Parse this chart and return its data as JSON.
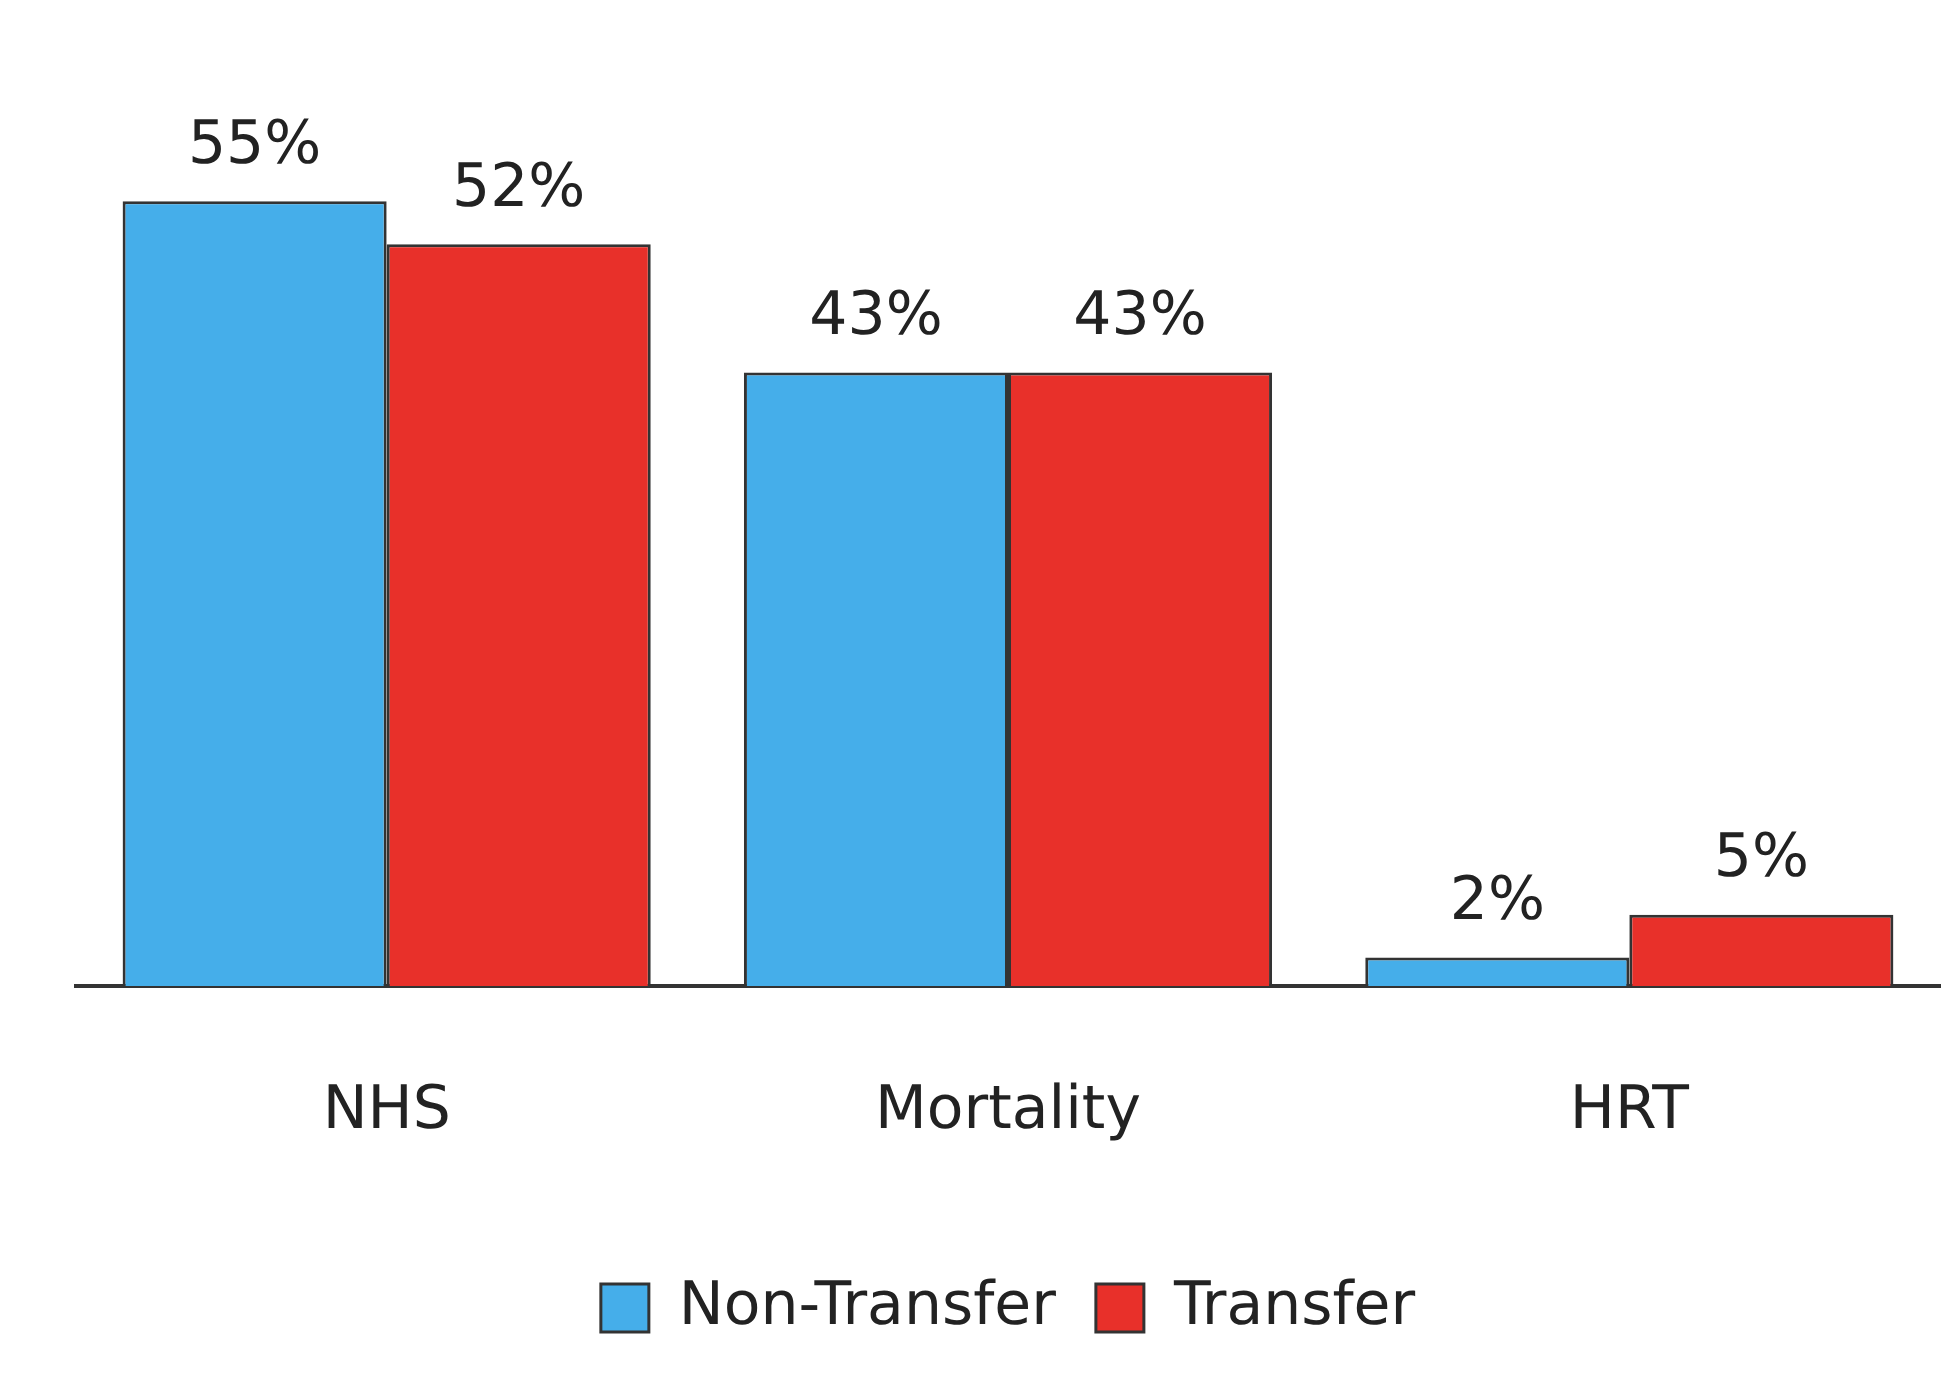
{
  "chart_data": {
    "type": "bar",
    "categories": [
      "NHS",
      "Mortality",
      "HRT"
    ],
    "series": [
      {
        "name": "Non-Transfer",
        "color": "#45aeea",
        "values": [
          55,
          43,
          2
        ],
        "value_labels": [
          "55%",
          "43%",
          "2%"
        ]
      },
      {
        "name": "Transfer",
        "color": "#e8302a",
        "values": [
          52,
          43,
          5
        ],
        "value_labels": [
          "52%",
          "43%",
          "5%"
        ]
      }
    ],
    "legend": "bottom",
    "grid": false
  }
}
